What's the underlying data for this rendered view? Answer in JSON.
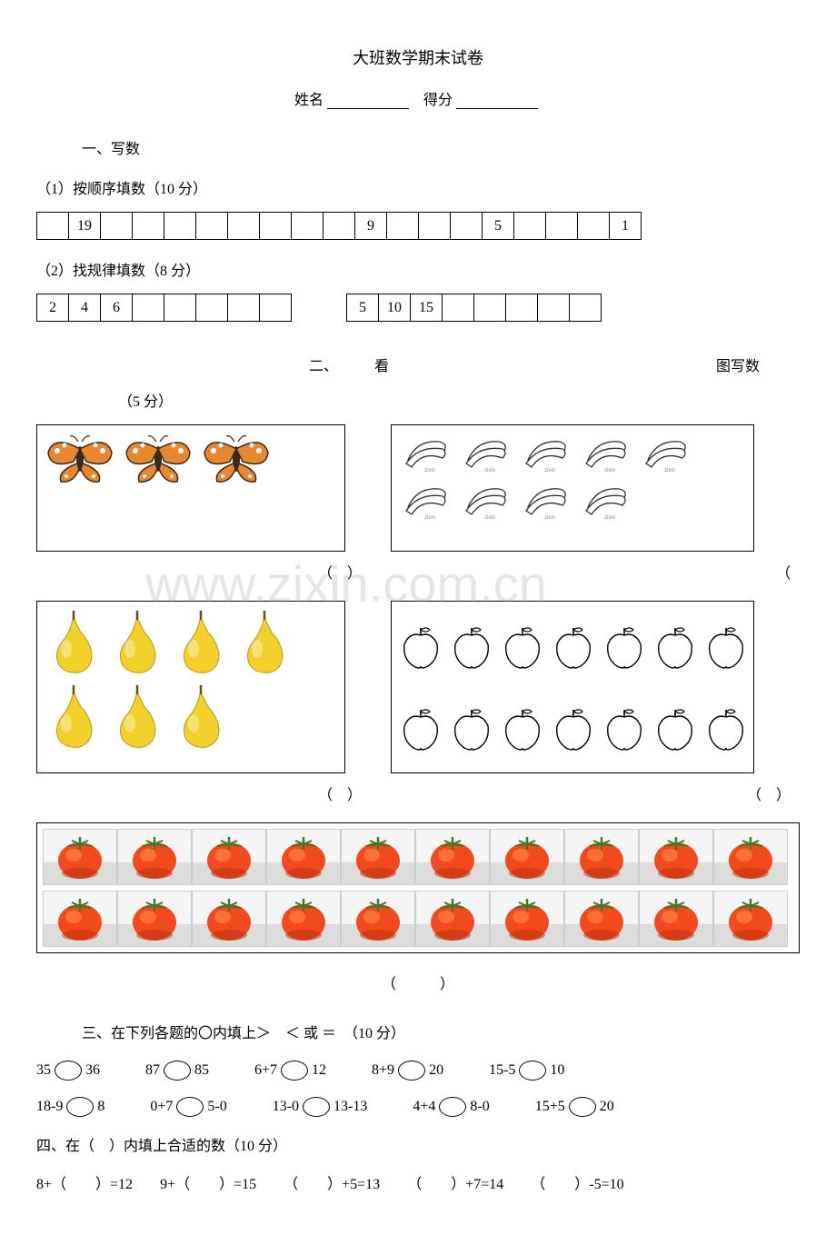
{
  "title": "大班数学期末试卷",
  "name_label": "姓名",
  "score_label": "得分",
  "section1": {
    "heading": "一、写数",
    "sub1": {
      "label": "（1）按顺序填数（10 分）",
      "cells": [
        "",
        "19",
        "",
        "",
        "",
        "",
        "",
        "",
        "",
        "",
        "9",
        "",
        "",
        "",
        "5",
        "",
        "",
        "",
        "1"
      ]
    },
    "sub2": {
      "label": "（2）找规律填数（8 分）",
      "tableA": [
        "2",
        "4",
        "6",
        "",
        "",
        "",
        "",
        ""
      ],
      "tableB": [
        "5",
        "10",
        "15",
        "",
        "",
        "",
        "",
        ""
      ]
    }
  },
  "section2": {
    "heading_num": "二、",
    "heading_kan": "看",
    "heading_tu": "图写数",
    "points": "（5 分）",
    "paren_open": "（",
    "paren_close": "）",
    "butterflies": {
      "count": 3,
      "rows": [
        3
      ]
    },
    "bananas": {
      "count": 9,
      "rows": [
        5,
        4
      ]
    },
    "pears": {
      "count": 7,
      "rows": [
        4,
        3
      ]
    },
    "apples": {
      "count": 14,
      "rows": [
        7,
        7
      ]
    },
    "tomatoes": {
      "count": 20,
      "rows": [
        10,
        10
      ]
    }
  },
  "section3": {
    "heading": "三、在下列各题的〇内填上＞　＜ 或 ＝　（10 分）",
    "rows": [
      [
        {
          "left": "35",
          "right": "36"
        },
        {
          "left": "87",
          "right": "85"
        },
        {
          "left": "6+7",
          "right": "12"
        },
        {
          "left": "8+9",
          "right": "20"
        },
        {
          "left": "15-5",
          "right": "10"
        }
      ],
      [
        {
          "left": "18-9",
          "right": "8"
        },
        {
          "left": "0+7",
          "right": "5-0"
        },
        {
          "left": "13-0",
          "right": "13-13"
        },
        {
          "left": "4+4",
          "right": "8-0"
        },
        {
          "left": "15+5",
          "right": "20"
        }
      ]
    ]
  },
  "section4": {
    "heading": "四、在（　）内填上合适的数（10 分）",
    "items": [
      "8+（　　）=12",
      "9+（　　）=15",
      "（　　）+5=13",
      "（　　）+7=14",
      "（　　）-5=10"
    ]
  },
  "watermark": "www.zixin.com.cn",
  "colors": {
    "butterfly_wing": "#e8872f",
    "butterfly_dark": "#3a2a1a",
    "butterfly_white": "#ffffff",
    "pear_body": "#f3d02a",
    "pear_shadow": "#b59a1a",
    "pear_stem": "#6b4a1a",
    "apple_stroke": "#000000",
    "apple_leaf": "#333333",
    "banana_stroke": "#333333",
    "tomato_body": "#f24a1c",
    "tomato_highlight": "#ff7a40",
    "tomato_shadow": "#b82e0c",
    "tomato_stem": "#3a7a2a"
  }
}
